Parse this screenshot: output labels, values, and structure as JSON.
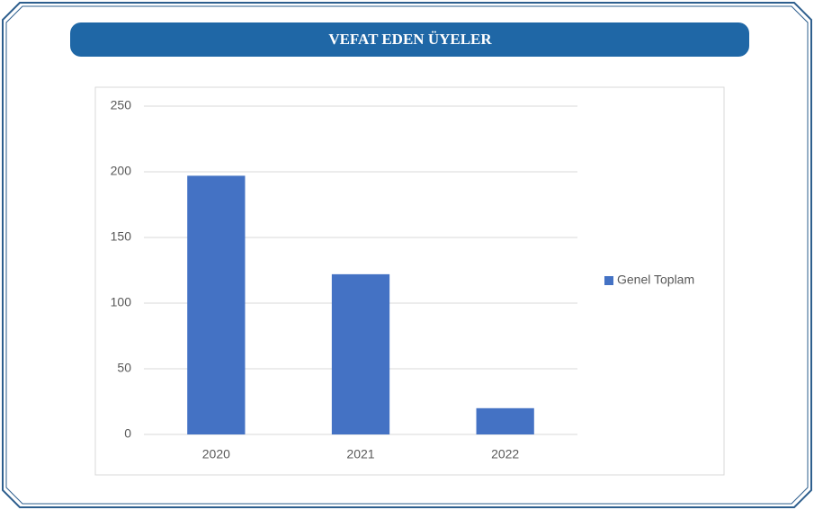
{
  "chart_data": {
    "type": "bar",
    "title": "VEFAT EDEN ÜYELER",
    "categories": [
      "2020",
      "2021",
      "2022"
    ],
    "series": [
      {
        "name": "Genel Toplam",
        "color": "#4472c4",
        "values": [
          197,
          122,
          20
        ]
      }
    ],
    "ylim": [
      0,
      250
    ],
    "yticks": [
      0,
      50,
      100,
      150,
      200,
      250
    ],
    "grid": true,
    "legend": "right"
  }
}
